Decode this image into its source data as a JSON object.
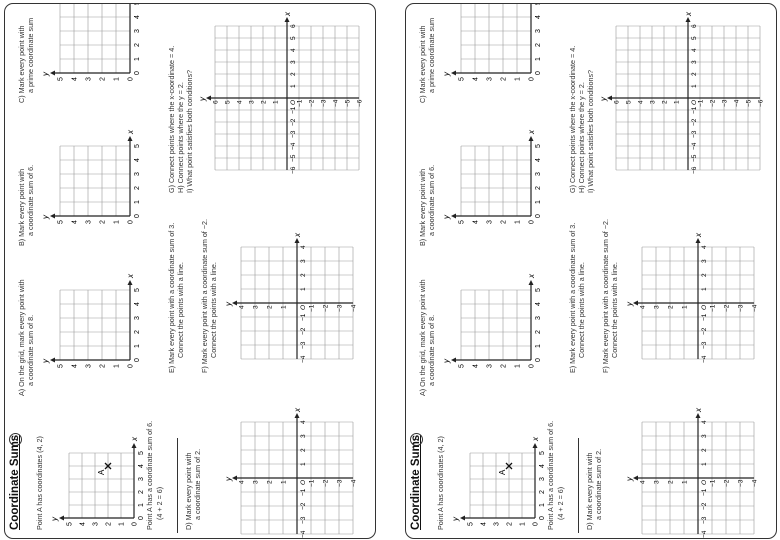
{
  "worksheet": {
    "title": "Coordinate Sums",
    "badge": "1",
    "sections": {
      "intro": "Point A has coordinates (4, 2)",
      "intro_note_1": "Point A has a coordinate sum of 6.",
      "intro_note_2": "(4 + 2 = 6)",
      "a_1": "A) On the grid, mark every point with",
      "a_2": "a coordinate sum of 8.",
      "b_1": "B) Mark every point with",
      "b_2": "a coordinate sum of 6.",
      "c_1": "C) Mark every point with",
      "c_2": "a prime coordinate sum",
      "d_1": "D) Mark every point with",
      "d_2": "a coordinate sum of 2.",
      "e_1": "E) Mark every point with a coordinate sum of 3.",
      "e_2": "Connect the points with a line.",
      "f_1": "F) Mark every point with a coordinate sum of −2.",
      "f_2": "Connect the points with a line.",
      "g_1": "G) Connect points where the x-coordinate = 4.",
      "h_1": "H) Connect points where the y = 2.",
      "i_1": "I) What point satisfies both conditions?"
    },
    "point_a": {
      "label": "A",
      "x": 4,
      "y": 2
    },
    "axis_labels": {
      "x": "x",
      "y": "y",
      "origin": "O"
    },
    "grid_0_5": {
      "ticks": [
        "0",
        "1",
        "2",
        "3",
        "4",
        "5"
      ]
    },
    "grid_pm4": {
      "ticks": [
        "−4",
        "−3",
        "−2",
        "−1",
        "1",
        "2",
        "3",
        "4"
      ]
    },
    "grid_pm6": {
      "ticks": [
        "−6",
        "−5",
        "−4",
        "−3",
        "−2",
        "−1",
        "1",
        "2",
        "3",
        "4",
        "5",
        "6"
      ]
    }
  }
}
